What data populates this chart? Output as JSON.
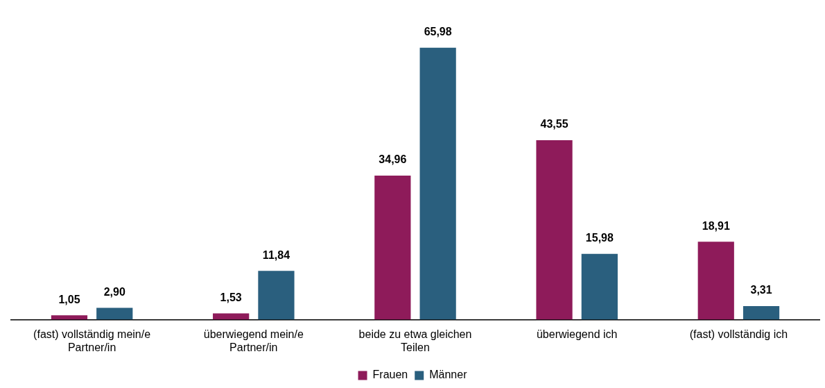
{
  "chart_data": {
    "type": "bar",
    "categories": [
      "(fast) vollständig mein/e Partner/in",
      "überwiegend mein/e Partner/in",
      "beide zu etwa gleichen Teilen",
      "überwiegend ich",
      "(fast) vollständig ich"
    ],
    "series": [
      {
        "name": "Frauen",
        "color": "#8e1b5a",
        "values": [
          1.05,
          1.53,
          34.96,
          43.55,
          18.91
        ],
        "value_labels": [
          "1,05",
          "1,53",
          "34,96",
          "43,55",
          "18,91"
        ]
      },
      {
        "name": "Männer",
        "color": "#2a5f7e",
        "values": [
          2.9,
          11.84,
          65.98,
          15.98,
          3.31
        ],
        "value_labels": [
          "2,90",
          "11,84",
          "65,98",
          "15,98",
          "3,31"
        ]
      }
    ],
    "tick_labels": "x",
    "grid": false,
    "legend": "bottom"
  }
}
